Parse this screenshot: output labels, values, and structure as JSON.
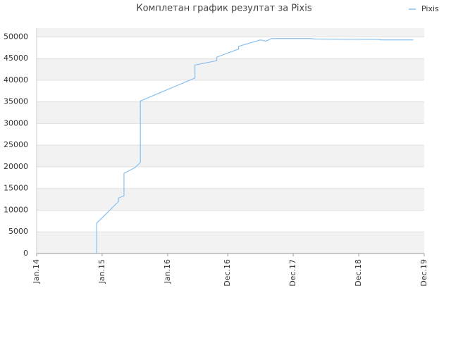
{
  "chart_data": {
    "type": "line",
    "title": "Комплетан график резултат за Pixis",
    "x": [
      "2014-12",
      "2014-12",
      "2015-04",
      "2015-04",
      "2015-05",
      "2015-05",
      "2015-05",
      "2015-07",
      "2015-08",
      "2015-08",
      "2016-06",
      "2016-06",
      "2016-10",
      "2016-10",
      "2017-02",
      "2017-02",
      "2017-06",
      "2017-07",
      "2017-08",
      "2018-03",
      "2018-04",
      "2019-04",
      "2019-04",
      "2019-10"
    ],
    "series": [
      {
        "name": "Pixis",
        "color": "#88c0f0",
        "values": [
          0,
          7000,
          12000,
          12800,
          13300,
          16500,
          18500,
          19800,
          21000,
          35200,
          40500,
          43500,
          44500,
          45300,
          47200,
          47800,
          49300,
          49000,
          49600,
          49600,
          49500,
          49400,
          49300,
          49300
        ]
      }
    ],
    "xlim": [
      "2014-01",
      "2019-12"
    ],
    "xticks": [
      {
        "value": "2014-01",
        "label": "Jan.14"
      },
      {
        "value": "2015-01",
        "label": "Jan.15"
      },
      {
        "value": "2016-01",
        "label": "Jan.16"
      },
      {
        "value": "2016-12",
        "label": "Dec.16"
      },
      {
        "value": "2017-12",
        "label": "Dec.17"
      },
      {
        "value": "2018-12",
        "label": "Dec.18"
      },
      {
        "value": "2019-12",
        "label": "Dec.19"
      }
    ],
    "ylim": [
      0,
      52000
    ],
    "yticks": [
      0,
      5000,
      10000,
      15000,
      20000,
      25000,
      30000,
      35000,
      40000,
      45000,
      50000
    ],
    "grid": true,
    "legend": "top-right"
  }
}
